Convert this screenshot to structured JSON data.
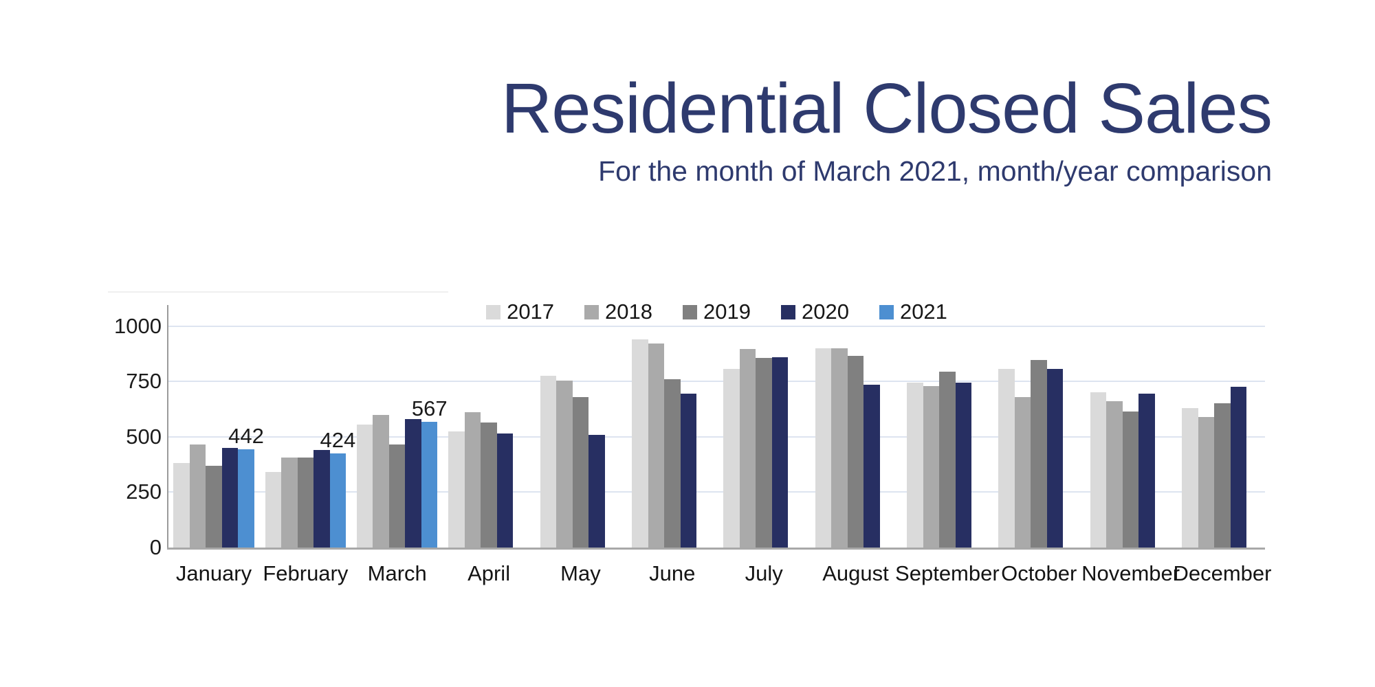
{
  "header": {
    "title": "Residential Closed Sales",
    "subtitle": "For the month of March 2021, month/year comparison",
    "title_color": "#2e3a6e"
  },
  "chart_data": {
    "type": "bar",
    "title": "Residential Closed Sales",
    "subtitle": "For the month of March 2021, month/year comparison",
    "categories": [
      "January",
      "February",
      "March",
      "April",
      "May",
      "June",
      "July",
      "August",
      "September",
      "October",
      "November",
      "December"
    ],
    "series": [
      {
        "name": "2017",
        "color": "#dadada",
        "values": [
          380,
          340,
          555,
          525,
          775,
          940,
          805,
          900,
          745,
          805,
          700,
          630
        ]
      },
      {
        "name": "2018",
        "color": "#aaaaaa",
        "values": [
          465,
          405,
          600,
          610,
          755,
          920,
          895,
          900,
          730,
          680,
          660,
          590
        ]
      },
      {
        "name": "2019",
        "color": "#808080",
        "values": [
          370,
          405,
          465,
          565,
          680,
          760,
          855,
          865,
          795,
          845,
          615,
          650
        ]
      },
      {
        "name": "2020",
        "color": "#272f62",
        "values": [
          450,
          440,
          580,
          515,
          510,
          695,
          860,
          735,
          745,
          805,
          695,
          725
        ]
      },
      {
        "name": "2021",
        "color": "#4d8fd1",
        "values": [
          442,
          424,
          567,
          null,
          null,
          null,
          null,
          null,
          null,
          null,
          null,
          null
        ],
        "show_value_labels": true
      }
    ],
    "value_labels": [
      "442",
      "424",
      "567"
    ],
    "ylim": [
      0,
      1000
    ],
    "yticks": [
      0,
      250,
      500,
      750,
      1000
    ],
    "ytick_labels": [
      "0",
      "250",
      "500",
      "750",
      "1000"
    ],
    "grid": true,
    "legend_position": "top-center",
    "gridline_color": "#dde4f0",
    "axis_color": "#a8a8a8"
  }
}
